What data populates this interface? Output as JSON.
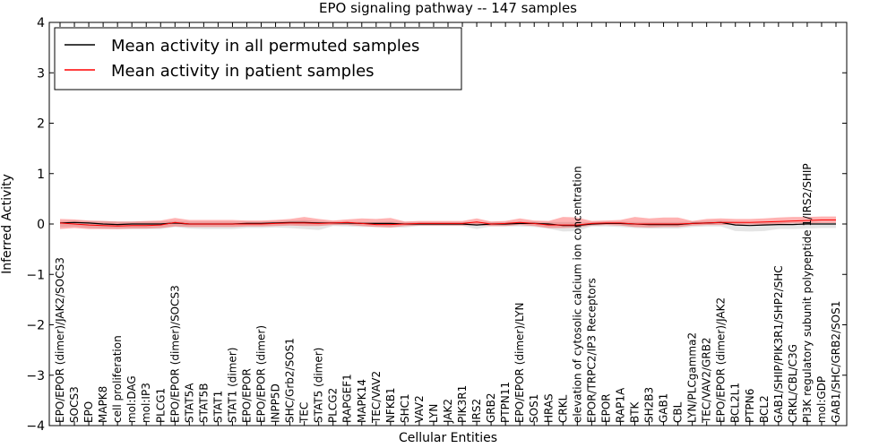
{
  "chart_data": {
    "type": "line",
    "title": "EPO signaling pathway -- 147 samples",
    "xlabel": "Cellular Entities",
    "ylabel": "Inferred Activity",
    "ylim": [
      -4,
      4
    ],
    "yticks": [
      -4,
      -3,
      -2,
      -1,
      0,
      1,
      2,
      3,
      4
    ],
    "ytick_labels": [
      "−4",
      "−3",
      "−2",
      "−1",
      "0",
      "1",
      "2",
      "3",
      "4"
    ],
    "legend_position": "top-left",
    "categories": [
      "EPO/EPOR (dimer)/JAK2/SOCS3",
      "SOCS3",
      "EPO",
      "MAPK8",
      "cell proliferation",
      "mol:DAG",
      "mol:IP3",
      "PLCG1",
      "EPO/EPOR (dimer)/SOCS3",
      "STAT5A",
      "STAT5B",
      "STAT1",
      "STAT1 (dimer)",
      "EPO/EPOR",
      "EPO/EPOR (dimer)",
      "INPP5D",
      "SHC/Grb2/SOS1",
      "TEC",
      "STAT5 (dimer)",
      "PLCG2",
      "RAPGEF1",
      "MAPK14",
      "TEC/VAV2",
      "NFKB1",
      "SHC1",
      "VAV2",
      "LYN",
      "JAK2",
      "PIK3R1",
      "IRS2",
      "GRB2",
      "PTPN11",
      "EPO/EPOR (dimer)/LYN",
      "SOS1",
      "HRAS",
      "CRKL",
      "elevation of cytosolic calcium ion concentration",
      "EPOR/TRPC2/IP3 Receptors",
      "EPOR",
      "RAP1A",
      "BTK",
      "SH2B3",
      "GAB1",
      "CBL",
      "LYN/PLCgamma2",
      "TEC/VAV2/GRB2",
      "EPO/EPOR (dimer)/JAK2",
      "BCL2L1",
      "PTPN6",
      "BCL2",
      "GAB1/SHIP/PIK3R1/SHP2/SHC",
      "CRKL/CBL/C3G",
      "PI3K regulatory subunit polypeptide 1/IRS2/SHIP",
      "mol:GDP",
      "GAB1/SHC/GRB2/SOS1"
    ],
    "series": [
      {
        "name": "Mean activity in all permuted samples",
        "color": "#000000",
        "values": [
          0.02,
          0.03,
          0.02,
          0.0,
          -0.01,
          0.0,
          0.0,
          0.0,
          0.02,
          0.0,
          0.0,
          0.0,
          0.0,
          0.01,
          0.01,
          0.02,
          0.03,
          0.03,
          0.02,
          0.02,
          0.02,
          0.01,
          0.01,
          0.01,
          0.0,
          0.0,
          0.0,
          0.0,
          0.0,
          -0.02,
          0.0,
          0.0,
          0.01,
          0.01,
          0.0,
          -0.03,
          -0.03,
          0.0,
          0.01,
          0.01,
          0.0,
          -0.01,
          -0.01,
          -0.01,
          0.01,
          0.02,
          0.03,
          -0.02,
          -0.03,
          -0.02,
          -0.01,
          -0.01,
          0.0,
          0.0,
          0.0
        ],
        "band_lower": [
          -0.06,
          -0.05,
          -0.08,
          -0.09,
          -0.1,
          -0.1,
          -0.1,
          -0.1,
          -0.06,
          -0.09,
          -0.1,
          -0.1,
          -0.1,
          -0.08,
          -0.08,
          -0.07,
          -0.08,
          -0.1,
          -0.12,
          -0.04,
          -0.05,
          -0.06,
          -0.06,
          -0.07,
          -0.07,
          -0.04,
          -0.04,
          -0.04,
          -0.04,
          -0.1,
          -0.05,
          -0.05,
          -0.05,
          -0.06,
          -0.09,
          -0.15,
          -0.14,
          -0.05,
          -0.05,
          -0.06,
          -0.08,
          -0.09,
          -0.09,
          -0.09,
          -0.06,
          -0.05,
          -0.05,
          -0.14,
          -0.15,
          -0.14,
          -0.1,
          -0.1,
          -0.09,
          -0.08,
          -0.08
        ],
        "band_upper": [
          0.06,
          0.07,
          0.06,
          0.06,
          0.05,
          0.05,
          0.05,
          0.05,
          0.06,
          0.05,
          0.05,
          0.05,
          0.05,
          0.05,
          0.05,
          0.06,
          0.07,
          0.08,
          0.06,
          0.05,
          0.05,
          0.04,
          0.04,
          0.05,
          0.04,
          0.04,
          0.04,
          0.04,
          0.04,
          0.04,
          0.04,
          0.04,
          0.05,
          0.05,
          0.04,
          0.04,
          0.04,
          0.04,
          0.05,
          0.05,
          0.04,
          0.04,
          0.04,
          0.04,
          0.05,
          0.06,
          0.07,
          0.05,
          0.04,
          0.04,
          0.04,
          0.04,
          0.04,
          0.04,
          0.04
        ]
      },
      {
        "name": "Mean activity in patient samples",
        "color": "#ff0000",
        "values": [
          0.02,
          0.0,
          -0.02,
          -0.03,
          -0.04,
          -0.03,
          -0.03,
          -0.02,
          0.03,
          0.0,
          0.0,
          0.0,
          0.0,
          0.0,
          0.0,
          0.01,
          0.02,
          0.02,
          0.01,
          0.02,
          0.03,
          0.01,
          -0.01,
          -0.01,
          0.0,
          0.01,
          0.01,
          0.01,
          0.01,
          0.04,
          0.0,
          0.01,
          0.03,
          0.01,
          -0.02,
          -0.02,
          -0.02,
          0.01,
          0.02,
          0.02,
          0.0,
          0.0,
          0.0,
          0.0,
          0.01,
          0.02,
          0.03,
          0.03,
          0.03,
          0.04,
          0.05,
          0.06,
          0.07,
          0.08,
          0.08
        ],
        "band_lower": [
          -0.1,
          -0.08,
          -0.1,
          -0.1,
          -0.1,
          -0.09,
          -0.09,
          -0.08,
          -0.05,
          -0.06,
          -0.06,
          -0.06,
          -0.06,
          -0.05,
          -0.05,
          -0.04,
          -0.03,
          -0.04,
          -0.04,
          -0.02,
          -0.02,
          -0.04,
          -0.06,
          -0.07,
          -0.04,
          -0.03,
          -0.03,
          -0.03,
          -0.03,
          -0.02,
          -0.04,
          -0.04,
          -0.02,
          -0.04,
          -0.08,
          -0.08,
          -0.07,
          -0.03,
          -0.02,
          -0.03,
          -0.06,
          -0.07,
          -0.06,
          -0.06,
          -0.03,
          -0.02,
          -0.02,
          -0.01,
          -0.01,
          -0.01,
          0.0,
          0.01,
          0.01,
          0.02,
          0.02
        ],
        "band_upper": [
          0.1,
          0.09,
          0.07,
          0.06,
          0.05,
          0.05,
          0.06,
          0.07,
          0.12,
          0.08,
          0.08,
          0.08,
          0.08,
          0.07,
          0.07,
          0.08,
          0.1,
          0.14,
          0.1,
          0.07,
          0.09,
          0.11,
          0.1,
          0.12,
          0.05,
          0.06,
          0.06,
          0.06,
          0.06,
          0.11,
          0.05,
          0.06,
          0.11,
          0.07,
          0.06,
          0.14,
          0.13,
          0.06,
          0.07,
          0.08,
          0.14,
          0.11,
          0.13,
          0.13,
          0.06,
          0.1,
          0.11,
          0.1,
          0.1,
          0.11,
          0.13,
          0.14,
          0.14,
          0.15,
          0.15
        ]
      }
    ]
  }
}
